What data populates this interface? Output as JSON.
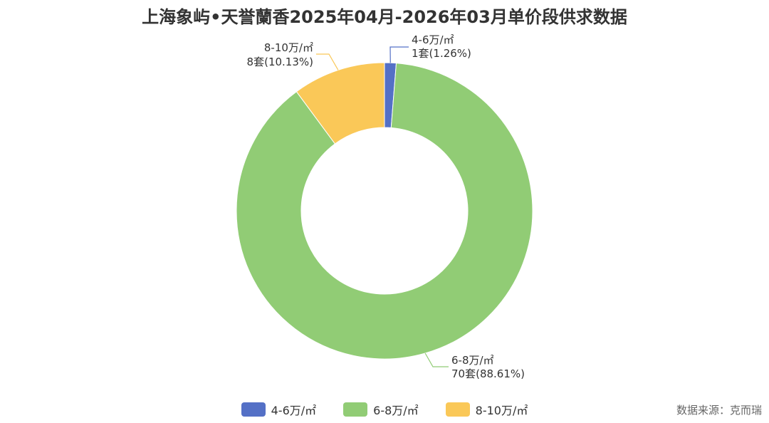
{
  "title": "上海象屿•天誉蘭香2025年04月-2026年03月单价段供求数据",
  "source": "数据来源：克而瑞",
  "colors": {
    "slice_1": "#5470c6",
    "slice_2": "#91cc75",
    "slice_3": "#fac858",
    "leader_line_1": "#5470c6",
    "leader_line_2": "#91cc75",
    "leader_line_3": "#fac858"
  },
  "chart_data": {
    "type": "pie",
    "donut": true,
    "title": "上海象屿•天誉蘭香2025年04月-2026年03月单价段供求数据",
    "categories": [
      "4-6万/㎡",
      "6-8万/㎡",
      "8-10万/㎡"
    ],
    "values": [
      1,
      70,
      8
    ],
    "percentages": [
      1.26,
      88.61,
      10.13
    ],
    "unit": "套",
    "slice_labels": [
      {
        "name": "4-6万/㎡",
        "detail": "1套(1.26%)"
      },
      {
        "name": "6-8万/㎡",
        "detail": "70套(88.61%)"
      },
      {
        "name": "8-10万/㎡",
        "detail": "8套(10.13%)"
      }
    ],
    "legend": [
      "4-6万/㎡",
      "6-8万/㎡",
      "8-10万/㎡"
    ],
    "legend_position": "bottom"
  }
}
